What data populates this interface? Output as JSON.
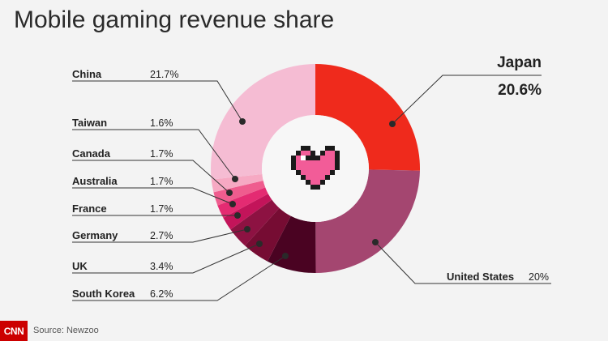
{
  "title": "Mobile gaming revenue share",
  "source": "Source: Newzoo",
  "logo_text": "CNN",
  "colors": {
    "japan": "#ef2a1c",
    "united_states": "#a44670",
    "south_korea": "#4a0322",
    "uk": "#760c33",
    "germany": "#8d1242",
    "france": "#c3145a",
    "australia": "#e42b72",
    "canada": "#ef5c8e",
    "taiwan": "#f6a9c3",
    "china": "#f5bcd3",
    "heart": "#f25c98"
  },
  "chart_data": {
    "type": "pie",
    "title": "Mobile gaming revenue share",
    "slices": [
      {
        "name": "Japan",
        "value": 20.6,
        "label": "20.6%"
      },
      {
        "name": "United States",
        "value": 20,
        "label": "20%"
      },
      {
        "name": "South Korea",
        "value": 6.2,
        "label": "6.2%"
      },
      {
        "name": "UK",
        "value": 3.4,
        "label": "3.4%"
      },
      {
        "name": "Germany",
        "value": 2.7,
        "label": "2.7%"
      },
      {
        "name": "France",
        "value": 1.7,
        "label": "1.7%"
      },
      {
        "name": "Australia",
        "value": 1.7,
        "label": "1.7%"
      },
      {
        "name": "Canada",
        "value": 1.7,
        "label": "1.7%"
      },
      {
        "name": "Taiwan",
        "value": 1.6,
        "label": "1.6%"
      },
      {
        "name": "China",
        "value": 21.7,
        "label": "21.7%"
      }
    ]
  }
}
